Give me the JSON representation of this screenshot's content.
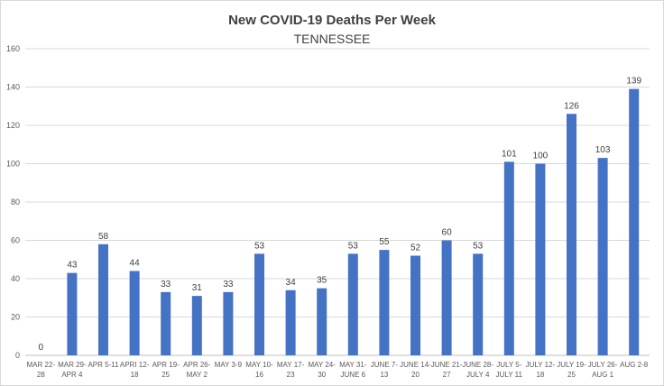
{
  "chart_data": {
    "type": "bar",
    "title": "New COVID-19 Deaths Per Week",
    "subtitle": "TENNESSEE",
    "xlabel": "",
    "ylabel": "",
    "ylim": [
      0,
      160
    ],
    "yticks": [
      0,
      20,
      40,
      60,
      80,
      100,
      120,
      140,
      160
    ],
    "grid": true,
    "legend": "none",
    "bar_color": "#4472C4",
    "categories": [
      [
        "MAR 22-",
        "28"
      ],
      [
        "MAR 29-",
        "APR 4"
      ],
      [
        "APR 5-11"
      ],
      [
        "APRI 12-",
        "18"
      ],
      [
        "APR 19-",
        "25"
      ],
      [
        "APR 26-",
        "MAY 2"
      ],
      [
        "MAY 3-9"
      ],
      [
        "MAY 10-",
        "16"
      ],
      [
        "MAY 17-",
        "23"
      ],
      [
        "MAY 24-",
        "30"
      ],
      [
        "MAY 31-",
        "JUNE 6"
      ],
      [
        "JUNE 7-",
        "13"
      ],
      [
        "JUNE 14-",
        "20"
      ],
      [
        "JUNE 21-",
        "27"
      ],
      [
        "JUNE 28-",
        "JULY 4"
      ],
      [
        "JULY 5-",
        "JULY 11"
      ],
      [
        "JULY 12-",
        "18"
      ],
      [
        "JULY 19-",
        "25"
      ],
      [
        "JULY 26-",
        "AUG 1"
      ],
      [
        "AUG 2-8"
      ]
    ],
    "values": [
      0,
      43,
      58,
      44,
      33,
      31,
      33,
      53,
      34,
      35,
      53,
      55,
      52,
      60,
      53,
      101,
      100,
      126,
      103,
      139
    ]
  }
}
